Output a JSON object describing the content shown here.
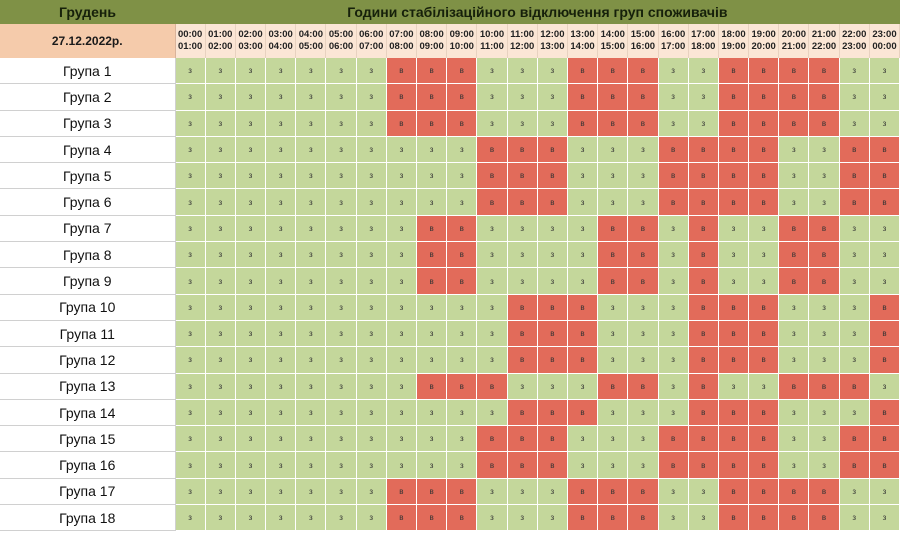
{
  "header": {
    "month_label": "Грудень",
    "title": "Години стабілізаційного відключення груп споживачів",
    "date_label": "27.12.2022р."
  },
  "hours": [
    {
      "from": "00:00",
      "to": "01:00"
    },
    {
      "from": "01:00",
      "to": "02:00"
    },
    {
      "from": "02:00",
      "to": "03:00"
    },
    {
      "from": "03:00",
      "to": "04:00"
    },
    {
      "from": "04:00",
      "to": "05:00"
    },
    {
      "from": "05:00",
      "to": "06:00"
    },
    {
      "from": "06:00",
      "to": "07:00"
    },
    {
      "from": "07:00",
      "to": "08:00"
    },
    {
      "from": "08:00",
      "to": "09:00"
    },
    {
      "from": "09:00",
      "to": "10:00"
    },
    {
      "from": "10:00",
      "to": "11:00"
    },
    {
      "from": "11:00",
      "to": "12:00"
    },
    {
      "from": "12:00",
      "to": "13:00"
    },
    {
      "from": "13:00",
      "to": "14:00"
    },
    {
      "from": "14:00",
      "to": "15:00"
    },
    {
      "from": "15:00",
      "to": "16:00"
    },
    {
      "from": "16:00",
      "to": "17:00"
    },
    {
      "from": "17:00",
      "to": "18:00"
    },
    {
      "from": "18:00",
      "to": "19:00"
    },
    {
      "from": "19:00",
      "to": "20:00"
    },
    {
      "from": "20:00",
      "to": "21:00"
    },
    {
      "from": "21:00",
      "to": "22:00"
    },
    {
      "from": "22:00",
      "to": "23:00"
    },
    {
      "from": "23:00",
      "to": "00:00"
    }
  ],
  "status_colors": {
    "з": "#c4d79b",
    "в": "#e26b5a"
  },
  "groups": [
    {
      "name": "Група 1",
      "slots": [
        "з",
        "з",
        "з",
        "з",
        "з",
        "з",
        "з",
        "в",
        "в",
        "в",
        "з",
        "з",
        "з",
        "в",
        "в",
        "в",
        "з",
        "з",
        "в",
        "в",
        "в",
        "в",
        "з",
        "з"
      ]
    },
    {
      "name": "Група 2",
      "slots": [
        "з",
        "з",
        "з",
        "з",
        "з",
        "з",
        "з",
        "в",
        "в",
        "в",
        "з",
        "з",
        "з",
        "в",
        "в",
        "в",
        "з",
        "з",
        "в",
        "в",
        "в",
        "в",
        "з",
        "з"
      ]
    },
    {
      "name": "Група 3",
      "slots": [
        "з",
        "з",
        "з",
        "з",
        "з",
        "з",
        "з",
        "в",
        "в",
        "в",
        "з",
        "з",
        "з",
        "в",
        "в",
        "в",
        "з",
        "з",
        "в",
        "в",
        "в",
        "в",
        "з",
        "з"
      ]
    },
    {
      "name": "Група 4",
      "slots": [
        "з",
        "з",
        "з",
        "з",
        "з",
        "з",
        "з",
        "з",
        "з",
        "з",
        "в",
        "в",
        "в",
        "з",
        "з",
        "з",
        "в",
        "в",
        "в",
        "в",
        "з",
        "з",
        "в",
        "в"
      ]
    },
    {
      "name": "Група 5",
      "slots": [
        "з",
        "з",
        "з",
        "з",
        "з",
        "з",
        "з",
        "з",
        "з",
        "з",
        "в",
        "в",
        "в",
        "з",
        "з",
        "з",
        "в",
        "в",
        "в",
        "в",
        "з",
        "з",
        "в",
        "в"
      ]
    },
    {
      "name": "Група 6",
      "slots": [
        "з",
        "з",
        "з",
        "з",
        "з",
        "з",
        "з",
        "з",
        "з",
        "з",
        "в",
        "в",
        "в",
        "з",
        "з",
        "з",
        "в",
        "в",
        "в",
        "в",
        "з",
        "з",
        "в",
        "в"
      ]
    },
    {
      "name": "Група 7",
      "slots": [
        "з",
        "з",
        "з",
        "з",
        "з",
        "з",
        "з",
        "з",
        "в",
        "в",
        "з",
        "з",
        "з",
        "з",
        "в",
        "в",
        "з",
        "в",
        "з",
        "з",
        "в",
        "в",
        "з",
        "з"
      ]
    },
    {
      "name": "Група 8",
      "slots": [
        "з",
        "з",
        "з",
        "з",
        "з",
        "з",
        "з",
        "з",
        "в",
        "в",
        "з",
        "з",
        "з",
        "з",
        "в",
        "в",
        "з",
        "в",
        "з",
        "з",
        "в",
        "в",
        "з",
        "з"
      ]
    },
    {
      "name": "Група 9",
      "slots": [
        "з",
        "з",
        "з",
        "з",
        "з",
        "з",
        "з",
        "з",
        "в",
        "в",
        "з",
        "з",
        "з",
        "з",
        "в",
        "в",
        "з",
        "в",
        "з",
        "з",
        "в",
        "в",
        "з",
        "з"
      ]
    },
    {
      "name": "Група 10",
      "slots": [
        "з",
        "з",
        "з",
        "з",
        "з",
        "з",
        "з",
        "з",
        "з",
        "з",
        "з",
        "в",
        "в",
        "в",
        "з",
        "з",
        "з",
        "в",
        "в",
        "в",
        "з",
        "з",
        "з",
        "в"
      ]
    },
    {
      "name": "Група 11",
      "slots": [
        "з",
        "з",
        "з",
        "з",
        "з",
        "з",
        "з",
        "з",
        "з",
        "з",
        "з",
        "в",
        "в",
        "в",
        "з",
        "з",
        "з",
        "в",
        "в",
        "в",
        "з",
        "з",
        "з",
        "в"
      ]
    },
    {
      "name": "Група 12",
      "slots": [
        "з",
        "з",
        "з",
        "з",
        "з",
        "з",
        "з",
        "з",
        "з",
        "з",
        "з",
        "в",
        "в",
        "в",
        "з",
        "з",
        "з",
        "в",
        "в",
        "в",
        "з",
        "з",
        "з",
        "в"
      ]
    },
    {
      "name": "Група 13",
      "slots": [
        "з",
        "з",
        "з",
        "з",
        "з",
        "з",
        "з",
        "з",
        "в",
        "в",
        "в",
        "з",
        "з",
        "з",
        "в",
        "в",
        "з",
        "в",
        "з",
        "з",
        "в",
        "в",
        "в",
        "з"
      ]
    },
    {
      "name": "Група 14",
      "slots": [
        "з",
        "з",
        "з",
        "з",
        "з",
        "з",
        "з",
        "з",
        "з",
        "з",
        "з",
        "в",
        "в",
        "в",
        "з",
        "з",
        "з",
        "в",
        "в",
        "в",
        "з",
        "з",
        "з",
        "в"
      ]
    },
    {
      "name": "Група 15",
      "slots": [
        "з",
        "з",
        "з",
        "з",
        "з",
        "з",
        "з",
        "з",
        "з",
        "з",
        "в",
        "в",
        "в",
        "з",
        "з",
        "з",
        "в",
        "в",
        "в",
        "в",
        "з",
        "з",
        "в",
        "в"
      ]
    },
    {
      "name": "Група 16",
      "slots": [
        "з",
        "з",
        "з",
        "з",
        "з",
        "з",
        "з",
        "з",
        "з",
        "з",
        "в",
        "в",
        "в",
        "з",
        "з",
        "з",
        "в",
        "в",
        "в",
        "в",
        "з",
        "з",
        "в",
        "в"
      ]
    },
    {
      "name": "Група 17",
      "slots": [
        "з",
        "з",
        "з",
        "з",
        "з",
        "з",
        "з",
        "в",
        "в",
        "в",
        "з",
        "з",
        "з",
        "в",
        "в",
        "в",
        "з",
        "з",
        "в",
        "в",
        "в",
        "в",
        "з",
        "з"
      ]
    },
    {
      "name": "Група 18",
      "slots": [
        "з",
        "з",
        "з",
        "з",
        "з",
        "з",
        "з",
        "в",
        "в",
        "в",
        "з",
        "з",
        "з",
        "в",
        "в",
        "в",
        "з",
        "з",
        "в",
        "в",
        "в",
        "в",
        "з",
        "з"
      ]
    }
  ]
}
